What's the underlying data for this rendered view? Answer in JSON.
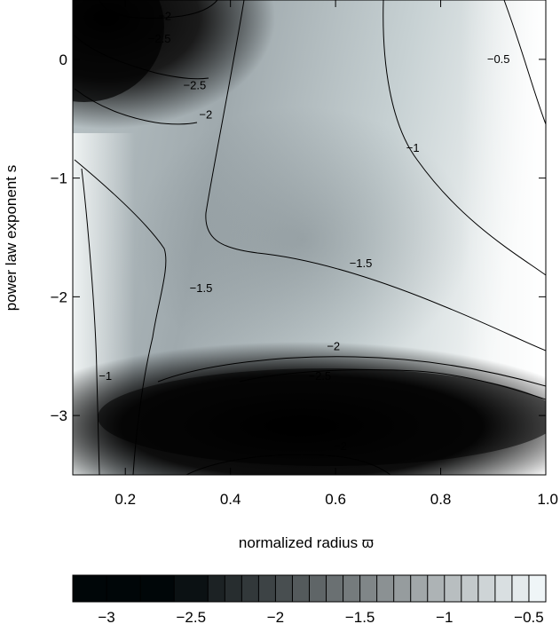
{
  "chart_data": {
    "type": "heatmap",
    "title": "",
    "xlabel": "normalized radius ϖ",
    "ylabel": "power law exponent s",
    "xlim": [
      0.1,
      1.0
    ],
    "ylim": [
      -3.5,
      0.5
    ],
    "xticks": [
      {
        "value": 0.2,
        "label": "0.2"
      },
      {
        "value": 0.4,
        "label": "0.4"
      },
      {
        "value": 0.6,
        "label": "0.6"
      },
      {
        "value": 0.8,
        "label": "0.8"
      },
      {
        "value": 1.0,
        "label": "1.0"
      }
    ],
    "yticks": [
      {
        "value": 0,
        "label": "0"
      },
      {
        "value": -1,
        "label": "−1"
      },
      {
        "value": -2,
        "label": "−2"
      },
      {
        "value": -3,
        "label": "−3"
      }
    ],
    "colorscale": "grayscale",
    "colorbar": {
      "range": [
        -3.2,
        -0.4
      ],
      "steps": [
        -3.2,
        -3.0,
        -2.8,
        -2.6,
        -2.4,
        -2.3,
        -2.2,
        -2.1,
        -2.0,
        -1.9,
        -1.8,
        -1.7,
        -1.6,
        -1.5,
        -1.4,
        -1.3,
        -1.2,
        -1.1,
        -1.0,
        -0.9,
        -0.8,
        -0.7,
        -0.6,
        -0.5,
        -0.4
      ],
      "ticks": [
        {
          "value": -3.0,
          "label": "−3"
        },
        {
          "value": -2.5,
          "label": "−2.5"
        },
        {
          "value": -2.0,
          "label": "−2"
        },
        {
          "value": -1.5,
          "label": "−1.5"
        },
        {
          "value": -1.0,
          "label": "−1"
        },
        {
          "value": -0.5,
          "label": "−0.5"
        }
      ]
    },
    "contour_labels": [
      {
        "text": "−2",
        "x": 0.275,
        "y": 0.36
      },
      {
        "text": "−2.5",
        "x": 0.265,
        "y": 0.17
      },
      {
        "text": "−2.5",
        "x": 0.332,
        "y": -0.22
      },
      {
        "text": "−2",
        "x": 0.353,
        "y": -0.47
      },
      {
        "text": "−0.5",
        "x": 0.91,
        "y": 0.0
      },
      {
        "text": "−1",
        "x": 0.747,
        "y": -0.75
      },
      {
        "text": "−1.5",
        "x": 0.344,
        "y": -1.93
      },
      {
        "text": "−1.5",
        "x": 0.648,
        "y": -1.72
      },
      {
        "text": "−1",
        "x": 0.162,
        "y": -2.67
      },
      {
        "text": "−2",
        "x": 0.596,
        "y": -2.42
      },
      {
        "text": "−2.5",
        "x": 0.57,
        "y": -2.67
      },
      {
        "text": "−2",
        "x": 0.609,
        "y": -3.26
      }
    ]
  }
}
